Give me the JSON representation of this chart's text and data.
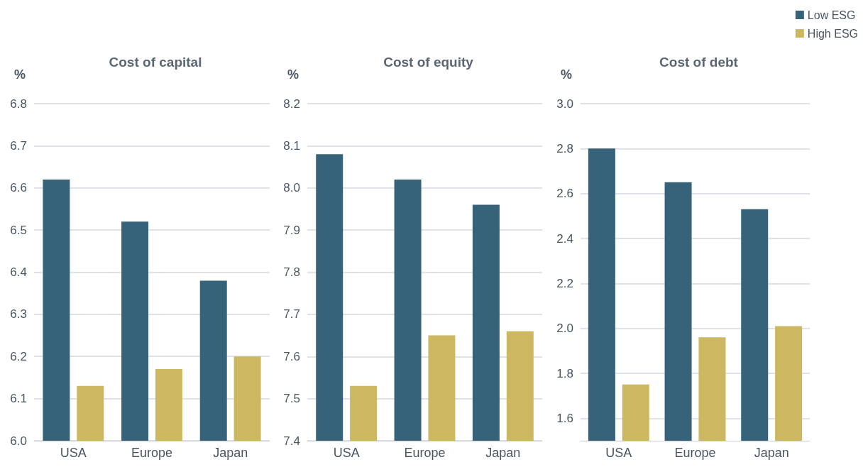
{
  "chart_data": [
    {
      "type": "bar",
      "title": "Cost of capital",
      "ylabel": "%",
      "categories": [
        "USA",
        "Europe",
        "Japan"
      ],
      "series": [
        {
          "color": "#36637a",
          "values": [
            6.62,
            6.52,
            6.38
          ]
        },
        {
          "color": "#cdb862",
          "values": [
            6.13,
            6.17,
            6.2
          ]
        }
      ],
      "ylim": [
        6.0,
        6.8
      ],
      "yticks": [
        {
          "value": 6.0,
          "label": "6.0"
        },
        6.1,
        6.2,
        6.3,
        6.4,
        6.5,
        6.6,
        6.7,
        6.8
      ],
      "grid": "y"
    },
    {
      "type": "bar",
      "title": "Cost of equity",
      "ylabel": "%",
      "categories": [
        "USA",
        "Europe",
        "Japan"
      ],
      "series": [
        {
          "color": "#36637a",
          "values": [
            8.08,
            8.02,
            7.96
          ]
        },
        {
          "color": "#cdb862",
          "values": [
            7.53,
            7.65,
            7.66
          ]
        }
      ],
      "ylim": [
        7.4,
        8.2
      ],
      "yticks": [
        7.4,
        7.5,
        7.6,
        7.7,
        7.8,
        7.9,
        {
          "value": 8.0,
          "label": "8.0"
        },
        8.1,
        8.2
      ],
      "grid": "y"
    },
    {
      "type": "bar",
      "title": "Cost of debt",
      "ylabel": "%",
      "categories": [
        "USA",
        "Europe",
        "Japan"
      ],
      "series": [
        {
          "name": "Low ESG",
          "color": "#36637a",
          "values": [
            2.8,
            2.65,
            2.53
          ]
        },
        {
          "name": "High ESG",
          "color": "#cdb862",
          "values": [
            1.75,
            1.96,
            2.01
          ]
        }
      ],
      "ylim": [
        1.5,
        3.0
      ],
      "yticks": [
        1.6,
        1.8,
        {
          "value": 2.0,
          "label": "2.0"
        },
        2.2,
        2.4,
        2.6,
        2.8,
        {
          "value": 3.0,
          "label": "3.0"
        }
      ],
      "grid": "y",
      "legend": "top right"
    }
  ]
}
